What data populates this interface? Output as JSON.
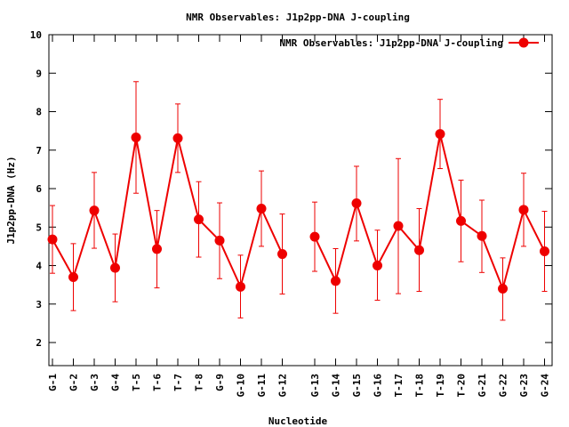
{
  "chart_data": {
    "type": "line",
    "title": "NMR Observables: J1p2pp-DNA J-coupling",
    "xlabel": "Nucleotide",
    "ylabel": "J1p2pp-DNA (Hz)",
    "ylim": [
      1.4,
      10
    ],
    "yticks": [
      2,
      3,
      4,
      5,
      6,
      7,
      8,
      9,
      10
    ],
    "grid": false,
    "legend_position": "top-right",
    "color": "#ee0000",
    "categories": [
      "G-1",
      "G-2",
      "G-3",
      "G-4",
      "T-5",
      "T-6",
      "T-7",
      "T-8",
      "G-9",
      "G-10",
      "G-11",
      "G-12",
      "G-13",
      "G-14",
      "G-15",
      "G-16",
      "T-17",
      "T-18",
      "T-19",
      "T-20",
      "G-21",
      "G-22",
      "G-23",
      "G-24"
    ],
    "segments": [
      [
        0,
        11
      ],
      [
        12,
        23
      ]
    ],
    "series": [
      {
        "name": "NMR Observables: J1p2pp-DNA J-coupling",
        "values": [
          4.68,
          3.7,
          5.43,
          3.94,
          7.33,
          4.43,
          7.31,
          5.2,
          4.65,
          3.45,
          5.48,
          4.3,
          4.75,
          3.6,
          5.62,
          4.0,
          5.03,
          4.4,
          7.42,
          5.16,
          4.77,
          3.4,
          5.45,
          4.37
        ],
        "err_low": [
          3.8,
          2.83,
          4.45,
          3.06,
          5.88,
          3.42,
          6.42,
          4.22,
          3.66,
          2.64,
          4.5,
          3.26,
          3.85,
          2.76,
          4.64,
          3.1,
          3.27,
          3.33,
          6.52,
          4.1,
          3.82,
          2.58,
          4.5,
          3.33
        ],
        "err_high": [
          5.56,
          4.57,
          6.42,
          4.82,
          8.78,
          5.43,
          8.2,
          6.18,
          5.63,
          4.27,
          6.46,
          5.34,
          5.65,
          4.44,
          6.58,
          4.92,
          6.78,
          5.48,
          8.32,
          6.22,
          5.7,
          4.2,
          6.4,
          5.41
        ]
      }
    ]
  }
}
